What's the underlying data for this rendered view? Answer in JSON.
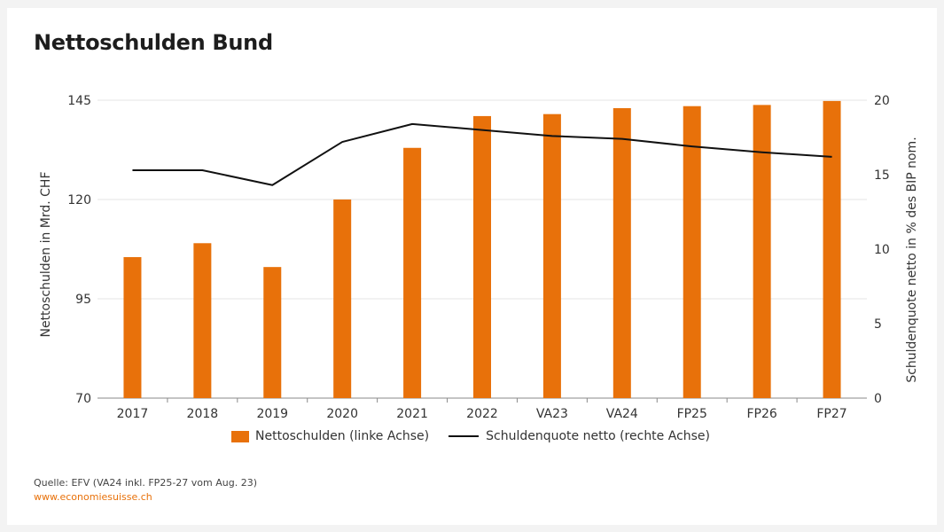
{
  "title": "Nettoschulden Bund",
  "source": {
    "text": "Quelle: EFV (VA24 inkl. FP25-27 vom Aug. 23)",
    "url": "www.economiesuisse.ch"
  },
  "colors": {
    "bar": "#e8710a",
    "line": "#111111",
    "grid": "#e4e4e4",
    "source_url": "#e8710a"
  },
  "legend": {
    "bar_label": "Nettoschulden (linke Achse)",
    "line_label": "Schuldenquote netto (rechte Achse)"
  },
  "chart_data": {
    "type": "bar",
    "title": "Nettoschulden Bund",
    "categories": [
      "2017",
      "2018",
      "2019",
      "2020",
      "2021",
      "2022",
      "VA23",
      "VA24",
      "FP25",
      "FP26",
      "FP27"
    ],
    "series": [
      {
        "name": "Nettoschulden (linke Achse)",
        "type": "bar",
        "axis": "left",
        "values": [
          105.5,
          109,
          103,
          120,
          133,
          141,
          141.5,
          143,
          143.5,
          143.8,
          144.8
        ]
      },
      {
        "name": "Schuldenquote netto (rechte Achse)",
        "type": "line",
        "axis": "right",
        "values": [
          15.3,
          15.3,
          14.3,
          17.2,
          18.4,
          18.0,
          17.6,
          17.4,
          16.9,
          16.5,
          16.2
        ]
      }
    ],
    "ylabel": "Nettoschulden in Mrd. CHF",
    "y2label": "Schuldenquote netto in % des BIP nom.",
    "ylim": [
      70,
      145
    ],
    "yticks": [
      70,
      95,
      120,
      145
    ],
    "y2lim": [
      0,
      20
    ],
    "y2ticks": [
      0,
      5,
      10,
      15,
      20
    ],
    "grid": true,
    "legend_position": "bottom"
  }
}
